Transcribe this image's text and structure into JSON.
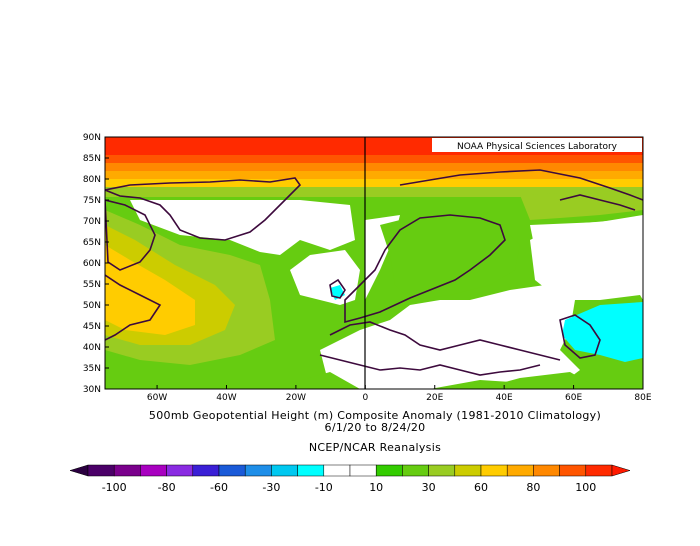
{
  "map": {
    "credit": "NOAA Physical Sciences Laboratory",
    "lat_labels": [
      "90N",
      "85N",
      "80N",
      "75N",
      "70N",
      "65N",
      "60N",
      "55N",
      "50N",
      "45N",
      "40N",
      "35N",
      "30N"
    ],
    "lon_labels": [
      "60W",
      "40W",
      "20W",
      "0",
      "20E",
      "40E",
      "60E",
      "80E"
    ],
    "region": {
      "lon_min": -75,
      "lon_max": 80,
      "lat_min": 30,
      "lat_max": 90
    }
  },
  "caption": {
    "title_line1": "500mb Geopotential Height (m) Composite Anomaly (1981-2010 Climatology)",
    "title_line2": "6/1/20  to 8/24/20",
    "source": "NCEP/NCAR Reanalysis"
  },
  "colorbar": {
    "labels": [
      "-100",
      "-80",
      "-60",
      "-30",
      "-10",
      "10",
      "30",
      "60",
      "80",
      "100"
    ],
    "colors": [
      "#4b0068",
      "#7a008c",
      "#a800c0",
      "#8a2be2",
      "#3a1fd6",
      "#1a5ad8",
      "#1e8ee8",
      "#00c8f0",
      "#00ffff",
      "#ffffff",
      "#ffffff",
      "#33cc00",
      "#66cc11",
      "#99cc22",
      "#cccc00",
      "#ffcc00",
      "#ffaa00",
      "#ff8800",
      "#ff5500",
      "#ff2a00"
    ]
  },
  "chart_data": {
    "type": "heatmap",
    "title": "500mb Geopotential Height (m) Composite Anomaly (1981-2010 Climatology)",
    "subtitle": "6/1/20  to 8/24/20",
    "source": "NCEP/NCAR Reanalysis",
    "xlim": [
      -75,
      80
    ],
    "ylim": [
      30,
      90
    ],
    "contour_levels": [
      -100,
      -80,
      -60,
      -30,
      -10,
      10,
      30,
      60,
      80,
      100
    ]
  }
}
